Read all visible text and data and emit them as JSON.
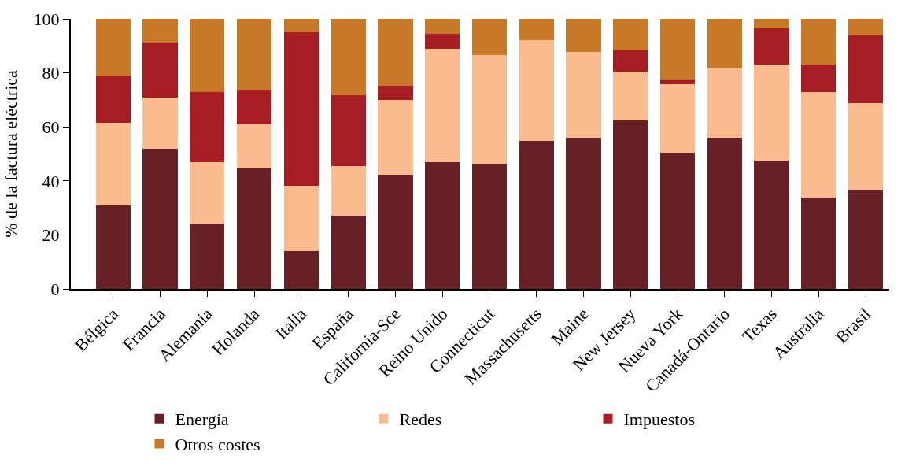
{
  "chart_data": {
    "type": "bar",
    "stacked": true,
    "ylabel": "% de la factura eléctrica",
    "categories": [
      "Bélgica",
      "Francia",
      "Alemania",
      "Holanda",
      "Italia",
      "España",
      "California-Sce",
      "Reino Unido",
      "Connecticut",
      "Massachusetts",
      "Maine",
      "New Jersey",
      "Nueva York",
      "Canadá-Ontario",
      "Texas",
      "Australia",
      "Brasil"
    ],
    "series": [
      {
        "name": "Energía",
        "color": "#662026",
        "values": [
          30.8,
          51.9,
          24.2,
          44.5,
          14.1,
          27.1,
          42.4,
          47.0,
          46.4,
          54.8,
          55.9,
          62.4,
          50.5,
          55.9,
          47.5,
          33.7,
          36.7
        ]
      },
      {
        "name": "Redes",
        "color": "#fabb8f",
        "values": [
          30.6,
          19.0,
          22.8,
          16.3,
          24.2,
          18.5,
          27.6,
          41.8,
          40.2,
          37.2,
          31.8,
          18.2,
          25.2,
          26.1,
          35.6,
          39.3,
          32.0
        ]
      },
      {
        "name": "Impuestos",
        "color": "#a61e23",
        "values": [
          17.6,
          20.3,
          25.8,
          13.0,
          56.7,
          26.1,
          5.2,
          5.7,
          0,
          0,
          0,
          7.6,
          1.9,
          0,
          13.3,
          10.1,
          25.2
        ]
      },
      {
        "name": "Otros costes",
        "color": "#c87928",
        "values": [
          21.0,
          8.8,
          27.1,
          26.2,
          5.0,
          28.3,
          24.7,
          5.5,
          13.4,
          8.0,
          12.3,
          11.8,
          22.4,
          18.2,
          3.8,
          17.1,
          6.3
        ]
      }
    ],
    "ylim": [
      0,
      100
    ],
    "yticks": [
      0,
      20,
      40,
      60,
      80,
      100
    ],
    "legend": "bottom"
  }
}
